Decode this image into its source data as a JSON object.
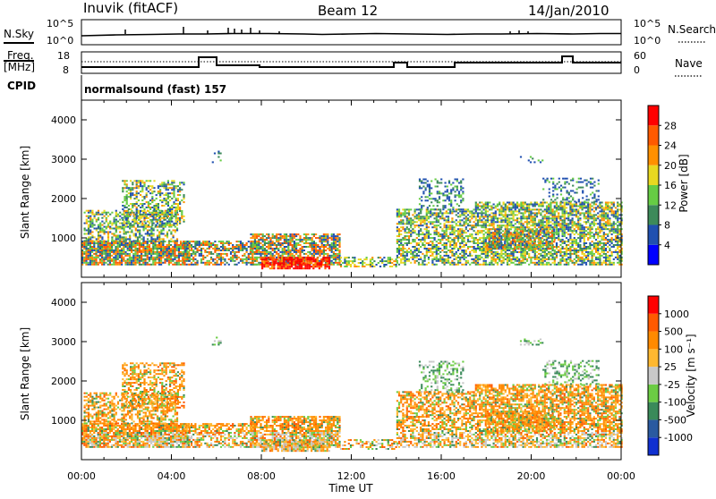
{
  "header": {
    "station": "Inuvik (fitACF)",
    "beam": "Beam 12",
    "date": "14/Jan/2010"
  },
  "strip1": {
    "left_label": "N.Sky",
    "right_label": "N.Search",
    "ticks_left": [
      "10^5",
      "10^0"
    ],
    "ticks_right": [
      "10^5",
      "10^0"
    ]
  },
  "strip2": {
    "left_label_1": "Freq.",
    "left_label_2": "[MHz]",
    "right_label": "Nave",
    "ticks_left": [
      "18",
      "8"
    ],
    "ticks_right": [
      "60",
      "0"
    ]
  },
  "cpid": {
    "label": "CPID",
    "text": "normalsound (fast) 157"
  },
  "chart_data": [
    {
      "type": "heatmap",
      "quantity": "Power",
      "ylabel": "Slant Range [km]",
      "xlabel": "Time UT",
      "x_ticks": [
        "00:00",
        "04:00",
        "08:00",
        "12:00",
        "16:00",
        "20:00",
        "00:00"
      ],
      "y_ticks": [
        1000,
        2000,
        3000,
        4000
      ],
      "colorbar": {
        "label": "Power [dB]",
        "ticks": [
          4,
          8,
          12,
          16,
          20,
          24,
          28
        ],
        "colors": [
          "#0000ff",
          "#2050b0",
          "#3d8a5a",
          "#66cc44",
          "#e8d820",
          "#ff9000",
          "#ff5a00",
          "#ff0000"
        ]
      }
    },
    {
      "type": "heatmap",
      "quantity": "Velocity",
      "ylabel": "Slant Range [km]",
      "xlabel": "Time UT",
      "x_ticks": [
        "00:00",
        "04:00",
        "08:00",
        "12:00",
        "16:00",
        "20:00",
        "00:00"
      ],
      "y_ticks": [
        1000,
        2000,
        3000,
        4000
      ],
      "colorbar": {
        "label": "Velocity [m s⁻¹]",
        "ticks": [
          1000,
          500,
          100,
          25,
          -25,
          -100,
          -500,
          -1000
        ],
        "colors": [
          "#1030d0",
          "#2a5aa0",
          "#3a8a5a",
          "#6ccc44",
          "#c8c8c8",
          "#ffb830",
          "#ff8a00",
          "#ff5a00",
          "#ff0000"
        ]
      }
    }
  ]
}
